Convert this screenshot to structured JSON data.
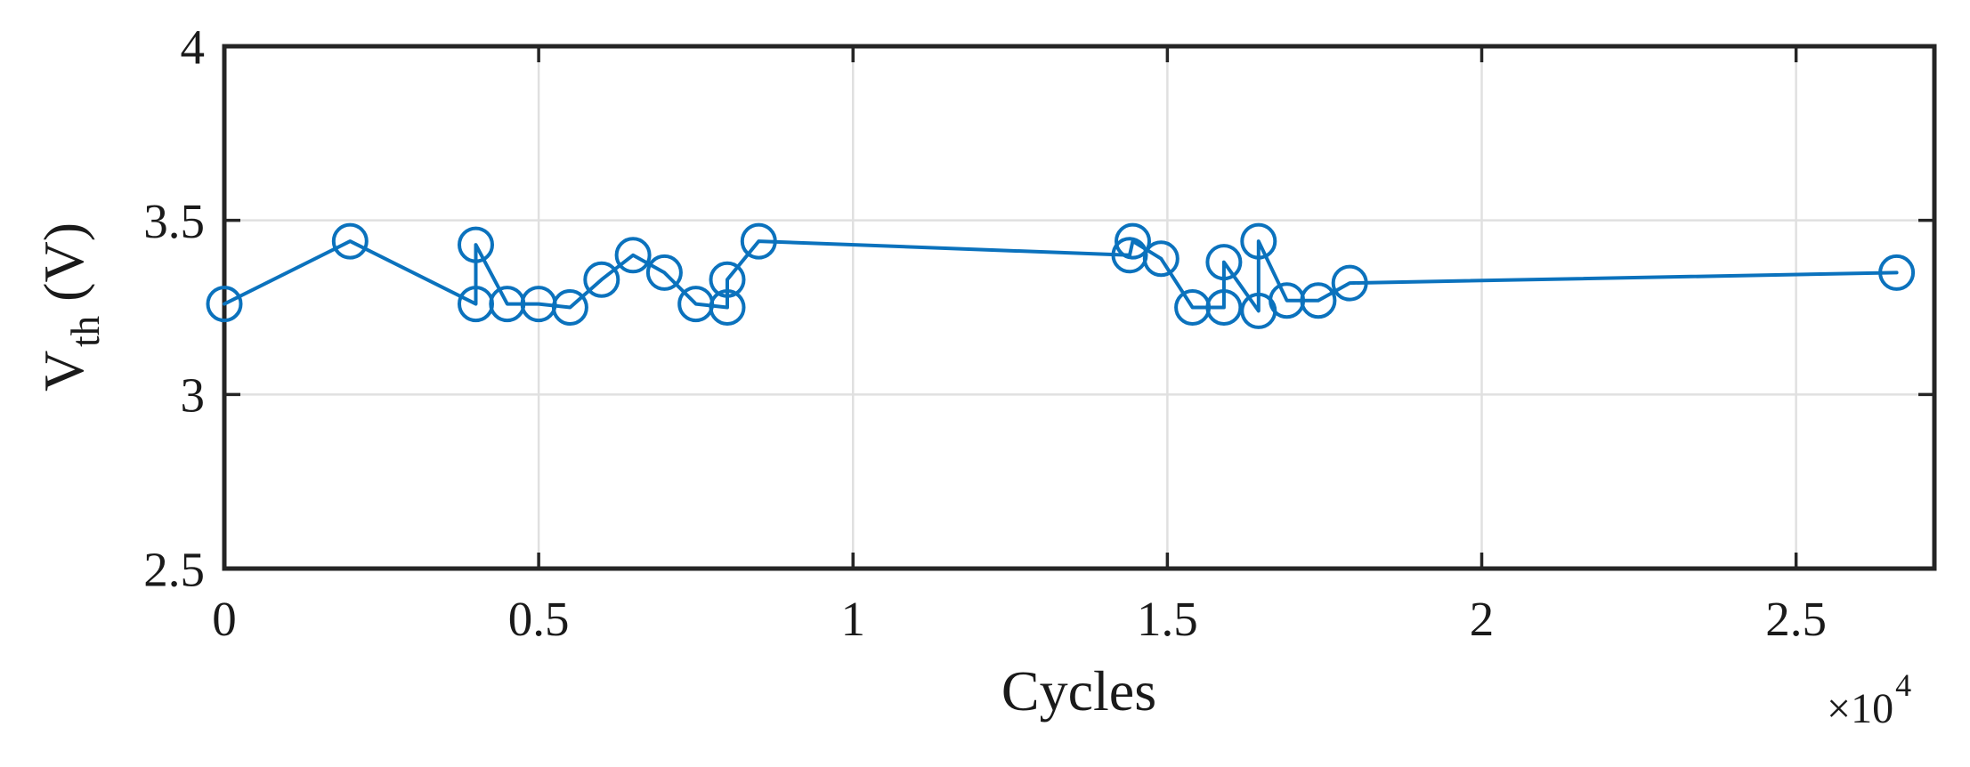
{
  "figure": {
    "background": "#ffffff"
  },
  "chart_data": {
    "type": "line",
    "title": "",
    "xlabel": "Cycles",
    "ylabel": {
      "main": "V",
      "sub": "th",
      "unit": "(V)"
    },
    "x_scale": {
      "base": "×10",
      "exponent": "4"
    },
    "xlim": [
      0,
      27200
    ],
    "ylim": [
      2.5,
      4.0
    ],
    "xticks": {
      "values": [
        0,
        5000,
        10000,
        15000,
        20000,
        25000
      ],
      "labels": [
        "0",
        "0.5",
        "1",
        "1.5",
        "2",
        "2.5"
      ]
    },
    "yticks": {
      "values": [
        2.5,
        3.0,
        3.5,
        4.0
      ],
      "labels": [
        "2.5",
        "3",
        "3.5",
        "4"
      ]
    },
    "grid": true,
    "legend": "none",
    "colors": {
      "line": "#0b72bd",
      "grid": "#e0e0e0",
      "axis": "#252525",
      "text": "#1a1a1a"
    },
    "series": [
      {
        "name": "Vth",
        "marker": "circle",
        "marker_fill": "none",
        "x": [
          0,
          2000,
          4000,
          4000,
          4500,
          5000,
          5500,
          6000,
          6500,
          7000,
          7500,
          8000,
          8000,
          8500,
          14400,
          14450,
          14900,
          15400,
          15900,
          15900,
          16450,
          16450,
          16900,
          17400,
          17900,
          26600
        ],
        "y": [
          3.26,
          3.44,
          3.26,
          3.43,
          3.26,
          3.26,
          3.25,
          3.33,
          3.4,
          3.35,
          3.26,
          3.25,
          3.33,
          3.44,
          3.4,
          3.44,
          3.39,
          3.25,
          3.25,
          3.38,
          3.24,
          3.44,
          3.27,
          3.27,
          3.32,
          3.35
        ]
      }
    ]
  }
}
